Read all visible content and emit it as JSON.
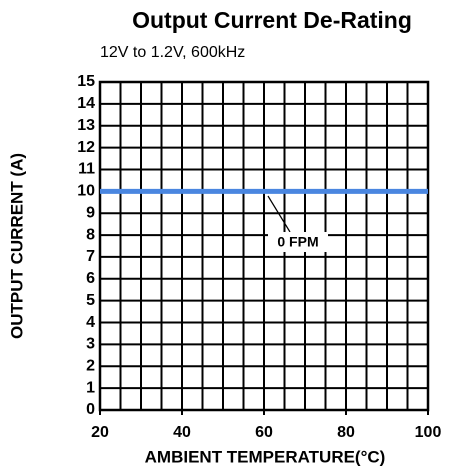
{
  "chart_data": {
    "type": "line",
    "title": "Output Current De-Rating",
    "subtitle": "12V to 1.2V, 600kHz",
    "xlabel": "AMBIENT TEMPERATURE(°C)",
    "ylabel": "OUTPUT CURRENT (A)",
    "x": [
      20,
      100
    ],
    "series": [
      {
        "name": "0 FPM",
        "color": "#4a86e0",
        "values": [
          10,
          10
        ]
      }
    ],
    "xlim": [
      20,
      100
    ],
    "xticks": [
      20,
      40,
      60,
      80,
      100
    ],
    "xgrid": [
      20,
      25,
      30,
      35,
      40,
      45,
      50,
      55,
      60,
      65,
      70,
      75,
      80,
      85,
      90,
      95,
      100
    ],
    "ylim": [
      0,
      15
    ],
    "yticks": [
      0,
      1,
      2,
      3,
      4,
      5,
      6,
      7,
      8,
      9,
      10,
      11,
      12,
      13,
      14,
      15
    ],
    "grid": true
  }
}
